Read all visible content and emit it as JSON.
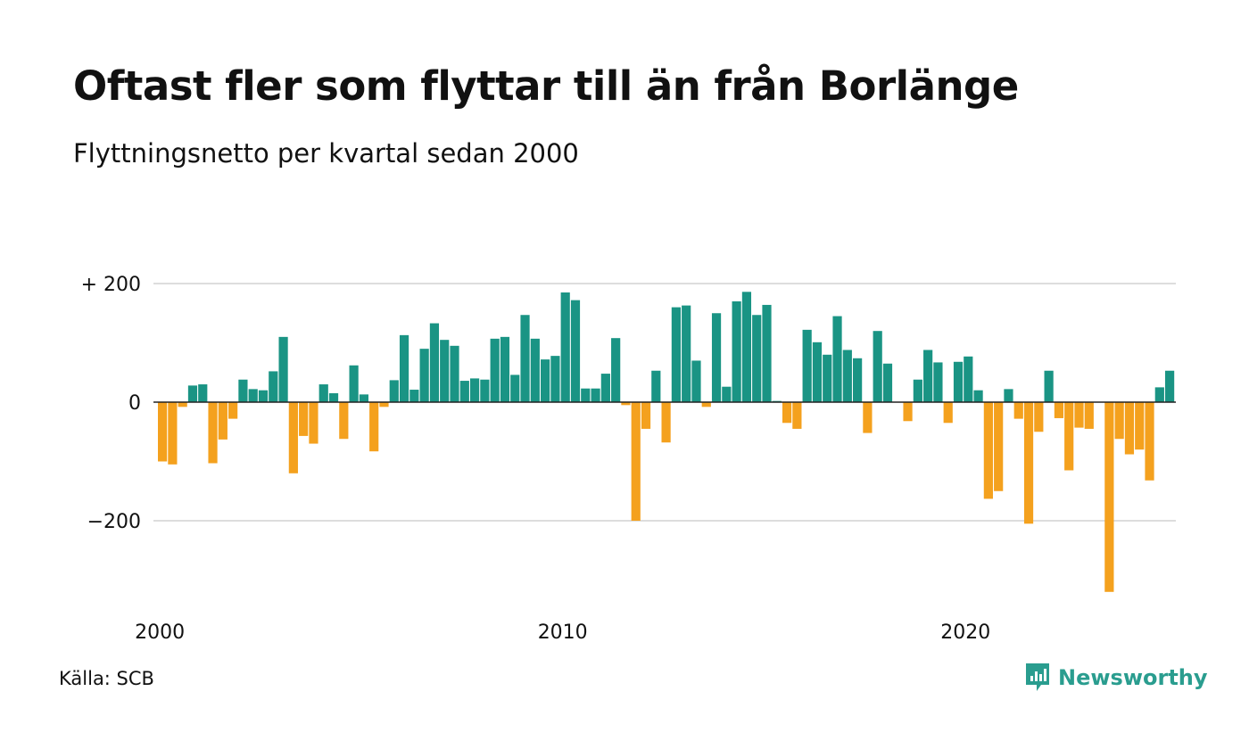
{
  "title": "Oftast fler som flyttar till än från Borlänge",
  "subtitle": "Flyttningsnetto per kvartal sedan 2000",
  "source": "Källa: SCB",
  "brand": {
    "name": "Newsworthy",
    "icon": "newsworthy-logo-icon"
  },
  "colors": {
    "positive": "#1a9484",
    "negative": "#f4a11e",
    "grid": "#dddddd",
    "zero_line": "#222222",
    "brand": "#2a9d8f"
  },
  "chart_data": {
    "type": "bar",
    "start": "2000 Q1",
    "frequency": "quarterly",
    "ylim": [
      -320,
      200
    ],
    "y_ticks": [
      {
        "value": 200,
        "label": "+ 200"
      },
      {
        "value": 0,
        "label": "0"
      },
      {
        "value": -200,
        "label": "−200"
      }
    ],
    "x_ticks": [
      {
        "value": 2000,
        "label": "2000"
      },
      {
        "value": 2010,
        "label": "2010"
      },
      {
        "value": 2020,
        "label": "2020"
      }
    ],
    "grid": true,
    "values": [
      -100,
      -105,
      -8,
      28,
      30,
      -103,
      -63,
      -28,
      38,
      22,
      20,
      52,
      110,
      -120,
      -57,
      -70,
      30,
      15,
      -62,
      62,
      13,
      -83,
      -8,
      37,
      113,
      21,
      90,
      133,
      105,
      95,
      36,
      40,
      38,
      107,
      110,
      46,
      147,
      107,
      72,
      78,
      185,
      172,
      23,
      23,
      48,
      108,
      -5,
      -200,
      -45,
      53,
      -68,
      160,
      163,
      70,
      -8,
      150,
      26,
      170,
      186,
      147,
      164,
      2,
      -35,
      -45,
      122,
      101,
      80,
      145,
      88,
      74,
      -52,
      120,
      65,
      0,
      -32,
      38,
      88,
      67,
      -35,
      68,
      77,
      20,
      -163,
      -150,
      22,
      -28,
      -205,
      -50,
      53,
      -27,
      -115,
      -43,
      -45,
      0,
      -320,
      -62,
      -88,
      -80,
      -132,
      25,
      53
    ]
  }
}
